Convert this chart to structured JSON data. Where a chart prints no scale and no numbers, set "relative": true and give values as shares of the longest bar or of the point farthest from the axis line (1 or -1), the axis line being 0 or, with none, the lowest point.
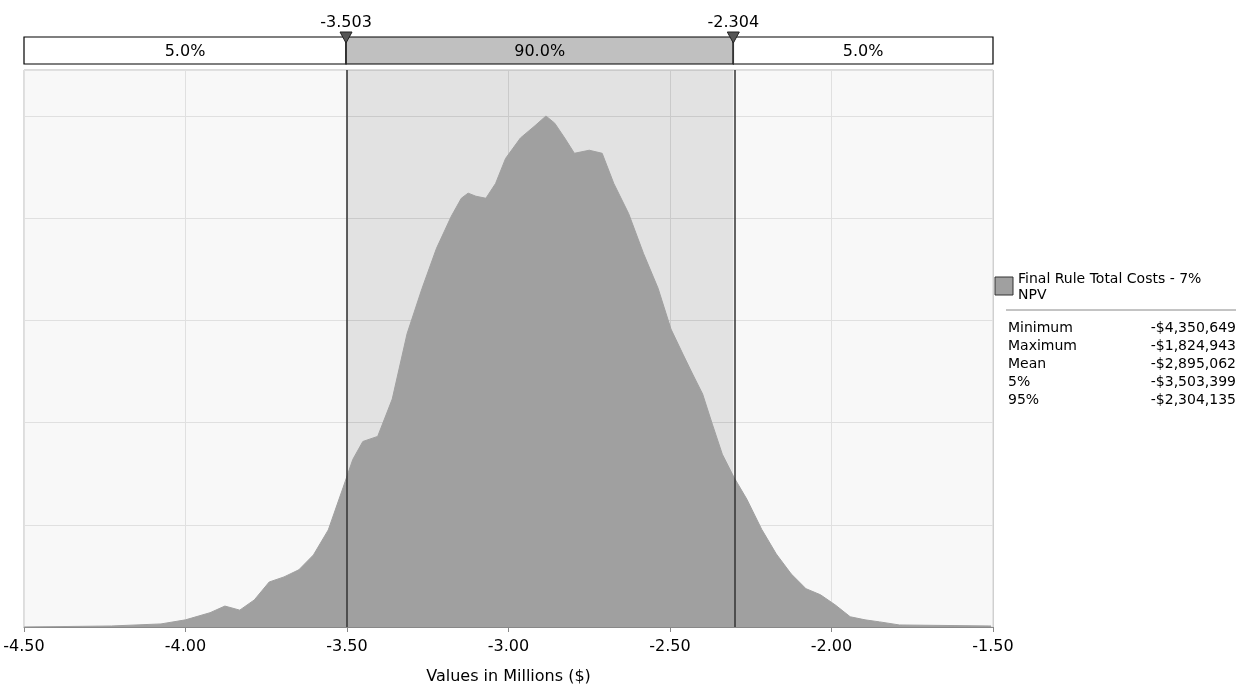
{
  "chart_data": {
    "type": "area",
    "relative": true,
    "xlabel": "Values in Millions ($)",
    "xlim": [
      -4.5,
      -1.5
    ],
    "xticks": [
      {
        "value": -4.5,
        "label": "-4.50"
      },
      {
        "value": -4.0,
        "label": "-4.00"
      },
      {
        "value": -3.5,
        "label": "-3.50"
      },
      {
        "value": -3.0,
        "label": "-3.00"
      },
      {
        "value": -2.5,
        "label": "-2.50"
      },
      {
        "value": -2.0,
        "label": "-2.00"
      },
      {
        "value": -1.5,
        "label": "-1.50"
      }
    ],
    "grid": true,
    "legend": "right",
    "marker": "none",
    "series": [
      {
        "name": "Final Rule Total Costs - 7% NPV",
        "color": "#a0a0a0",
        "x": [
          -4.5,
          -4.229,
          -4.076,
          -4.0,
          -3.924,
          -3.878,
          -3.832,
          -3.787,
          -3.741,
          -3.695,
          -3.649,
          -3.604,
          -3.558,
          -3.512,
          -3.482,
          -3.451,
          -3.405,
          -3.36,
          -3.314,
          -3.268,
          -3.223,
          -3.177,
          -3.146,
          -3.125,
          -3.101,
          -3.07,
          -3.04,
          -3.009,
          -2.963,
          -2.918,
          -2.884,
          -2.857,
          -2.826,
          -2.796,
          -2.75,
          -2.71,
          -2.674,
          -2.628,
          -2.582,
          -2.537,
          -2.497,
          -2.46,
          -2.43,
          -2.399,
          -2.369,
          -2.338,
          -2.302,
          -2.262,
          -2.216,
          -2.171,
          -2.125,
          -2.079,
          -2.034,
          -1.988,
          -1.942,
          -1.896,
          -1.851,
          -1.79,
          -1.506
        ],
        "values": [
          0,
          0.002,
          0.006,
          0.014,
          0.028,
          0.041,
          0.033,
          0.053,
          0.088,
          0.098,
          0.112,
          0.141,
          0.19,
          0.273,
          0.328,
          0.363,
          0.373,
          0.446,
          0.574,
          0.662,
          0.741,
          0.804,
          0.839,
          0.849,
          0.843,
          0.839,
          0.868,
          0.917,
          0.957,
          0.981,
          1.0,
          0.986,
          0.957,
          0.927,
          0.933,
          0.927,
          0.868,
          0.809,
          0.731,
          0.663,
          0.583,
          0.534,
          0.495,
          0.456,
          0.397,
          0.338,
          0.293,
          0.25,
          0.191,
          0.143,
          0.104,
          0.075,
          0.063,
          0.043,
          0.02,
          0.014,
          0.01,
          0.004,
          0.002
        ]
      }
    ],
    "ref_lines": [
      {
        "axis": "x",
        "value": -3.503,
        "label": "-3.503",
        "color": "#333333"
      },
      {
        "axis": "x",
        "value": -2.304,
        "label": "-2.304",
        "color": "#333333"
      }
    ],
    "bands": [
      {
        "axis": "x",
        "from": -4.5,
        "to": -3.503,
        "label": "5.0%",
        "color": "#ffffff"
      },
      {
        "axis": "x",
        "from": -3.503,
        "to": -2.304,
        "label": "90.0%",
        "color": "#c0c0c0"
      },
      {
        "axis": "x",
        "from": -2.304,
        "to": -1.5,
        "label": "5.0%",
        "color": "#ffffff"
      }
    ],
    "annotations": [
      "Minimum",
      "-$4,350,649",
      "Maximum",
      "-$1,824,943",
      "Mean",
      "-$2,895,062",
      "5%",
      "-$3,503,399",
      "95%",
      "-$2,304,135"
    ]
  }
}
